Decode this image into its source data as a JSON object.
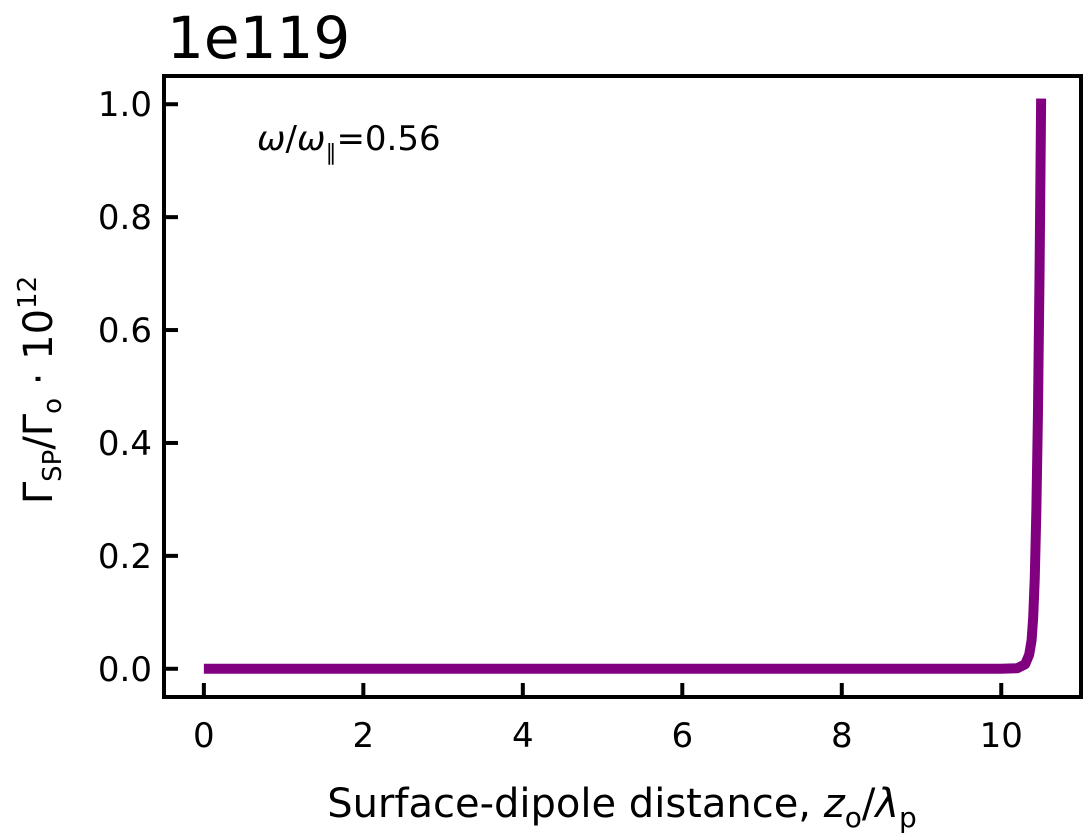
{
  "chart_data": {
    "type": "line",
    "offset_text": "1e119",
    "xlabel": {
      "main": "Surface-dipole distance, ",
      "var": "z",
      "var_sub": "o",
      "slash": "/",
      "var2": "λ",
      "var2_sub": "p"
    },
    "ylabel": {
      "g1": "Γ",
      "g1_sub": "SP",
      "slash": "/Γ",
      "g2_sub": "o",
      "dot": " · 10",
      "exp": "12"
    },
    "annotation": {
      "omega": "ω",
      "slash": "/",
      "omega2": "ω",
      "sub": "∥",
      "value": "=0.56"
    },
    "xlim": [
      -0.5,
      11.0
    ],
    "ylim": [
      -0.05,
      1.05
    ],
    "x_ticks": [
      0,
      2,
      4,
      6,
      8,
      10
    ],
    "x_tick_labels": [
      "0",
      "2",
      "4",
      "6",
      "8",
      "10"
    ],
    "y_ticks": [
      0.0,
      0.2,
      0.4,
      0.6,
      0.8,
      1.0
    ],
    "y_tick_labels": [
      "0.0",
      "0.2",
      "0.4",
      "0.6",
      "0.8",
      "1.0"
    ],
    "grid": false,
    "series": [
      {
        "color": "#800080",
        "x": [
          0,
          1,
          2,
          3,
          4,
          5,
          6,
          7,
          8,
          9,
          10,
          10.2,
          10.3,
          10.35,
          10.38,
          10.4,
          10.42,
          10.44,
          10.46,
          10.48,
          10.5
        ],
        "y": [
          0,
          0,
          0,
          0,
          0,
          0,
          0,
          0,
          0,
          0,
          0,
          0.001,
          0.008,
          0.025,
          0.05,
          0.09,
          0.16,
          0.28,
          0.45,
          0.7,
          1.01
        ]
      }
    ]
  }
}
